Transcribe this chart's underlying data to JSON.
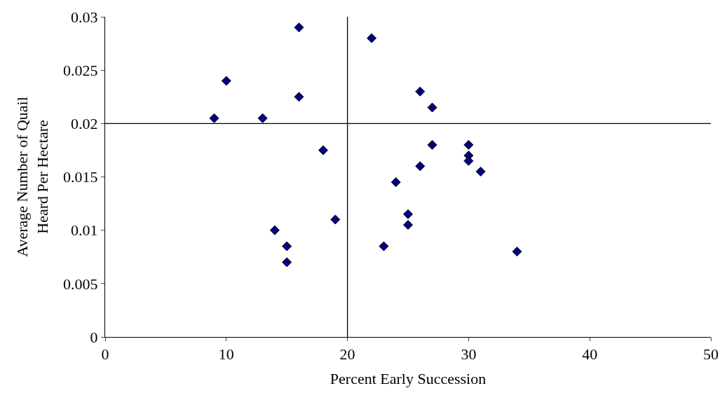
{
  "chart_data": {
    "type": "scatter",
    "xlabel": "Percent Early Succession",
    "ylabel": "Average Number of Quail\nHeard Per Hectare",
    "x": [
      9,
      10,
      13,
      16,
      16,
      18,
      14,
      15,
      15,
      19,
      22,
      26,
      27,
      27,
      26,
      24,
      25,
      25,
      23,
      30,
      30,
      30,
      31,
      34
    ],
    "series": [
      {
        "color": "#000080",
        "values": [
          0.0205,
          0.024,
          0.0205,
          0.029,
          0.0225,
          0.0175,
          0.01,
          0.0085,
          0.007,
          0.011,
          0.028,
          0.023,
          0.0215,
          0.018,
          0.016,
          0.0145,
          0.0115,
          0.0105,
          0.0085,
          0.018,
          0.017,
          0.0165,
          0.0155,
          0.008
        ]
      }
    ],
    "xlim": [
      0,
      50
    ],
    "xticks": [
      0,
      10,
      20,
      30,
      40,
      50
    ],
    "ylim": [
      0,
      0.03
    ],
    "yticks": [
      0,
      0.005,
      0.01,
      0.015,
      0.02,
      0.025,
      0.03
    ],
    "ref_lines": [
      {
        "axis": "x",
        "value": 20,
        "color": "#000000"
      },
      {
        "axis": "y",
        "value": 0.02,
        "color": "#000000"
      }
    ],
    "marker": "diamond",
    "grid": false
  }
}
